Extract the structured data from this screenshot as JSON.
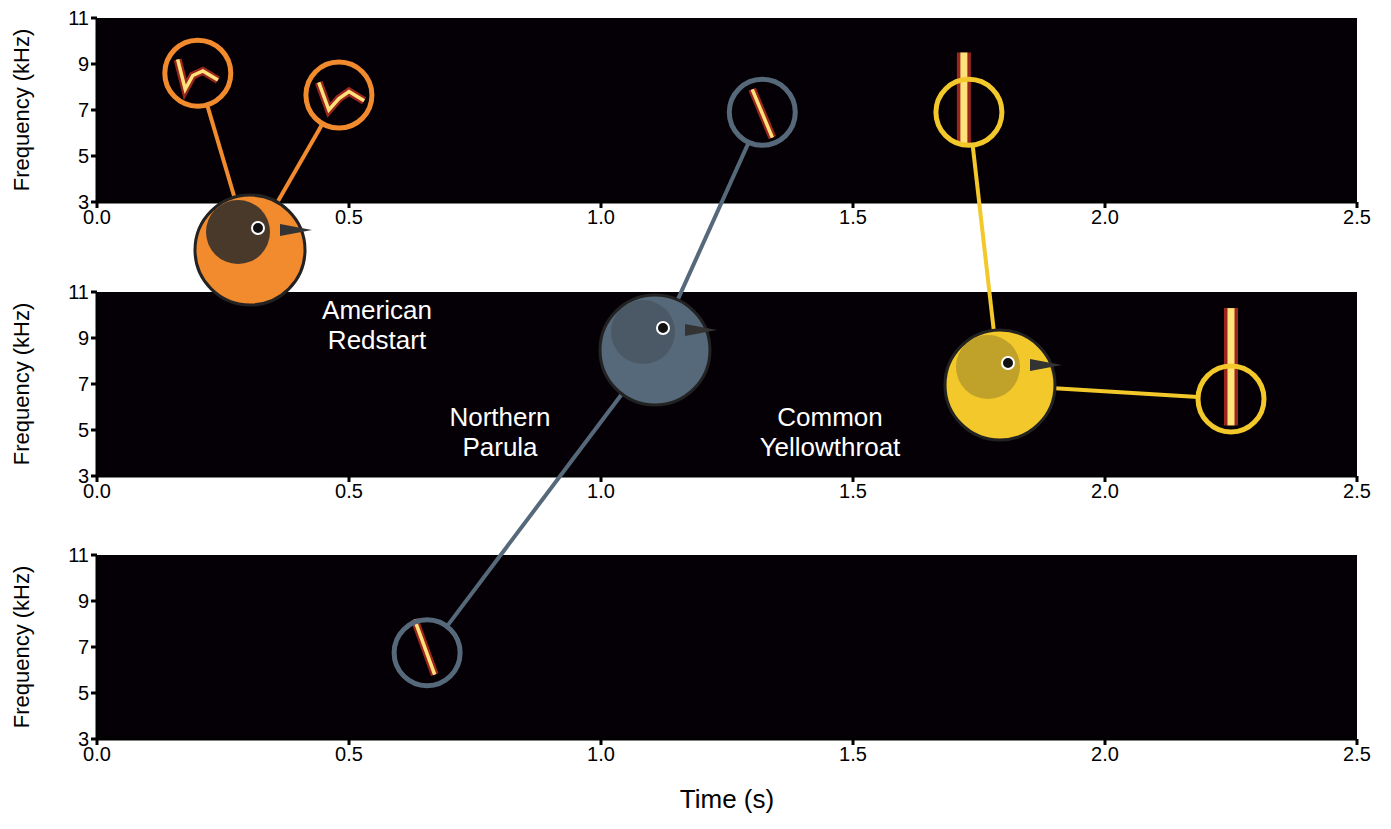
{
  "chart_data": [
    {
      "type": "spectrogram",
      "y_label": "Frequency (kHz)",
      "xlim": [
        0,
        2.5
      ],
      "xticks": [
        {
          "value": 0,
          "label": "0.0"
        },
        0.5,
        {
          "value": 1,
          "label": "1.0"
        },
        1.5,
        {
          "value": 2,
          "label": "2.0"
        },
        2.5
      ],
      "ylim": [
        3,
        11
      ],
      "yticks": [
        3,
        5,
        7,
        9,
        11
      ],
      "annotations": [
        {
          "species": "American Redstart",
          "x": 0.2,
          "y": 8.6,
          "trace": {
            "x": [
              0.16,
              0.175,
              0.19,
              0.21,
              0.24
            ],
            "y": [
              9.2,
              7.9,
              8.5,
              8.7,
              8.3
            ]
          }
        },
        {
          "species": "American Redstart",
          "x": 0.48,
          "y": 7.65,
          "trace": {
            "x": [
              0.44,
              0.46,
              0.48,
              0.5,
              0.53
            ],
            "y": [
              8.2,
              7.0,
              7.5,
              7.8,
              7.4
            ]
          }
        },
        {
          "species": "Northern Parula",
          "x": 1.32,
          "y": 6.9,
          "trace": {
            "x": [
              1.3,
              1.34
            ],
            "y": [
              7.9,
              5.8
            ]
          }
        },
        {
          "species": "Common Yellowthroat",
          "x": 1.73,
          "y": 6.9,
          "trace": {
            "x": [
              1.72,
              1.72
            ],
            "y": [
              5.5,
              9.5
            ]
          }
        }
      ]
    },
    {
      "type": "spectrogram",
      "y_label": "Frequency (kHz)",
      "xlim": [
        0,
        2.5
      ],
      "xticks": [
        {
          "value": 0,
          "label": "0.0"
        },
        0.5,
        {
          "value": 1,
          "label": "1.0"
        },
        1.5,
        {
          "value": 2,
          "label": "2.0"
        },
        2.5
      ],
      "ylim": [
        3,
        11
      ],
      "yticks": [
        3,
        5,
        7,
        9,
        11
      ],
      "annotations": [
        {
          "species": "Common Yellowthroat",
          "x": 2.25,
          "y": 6.35,
          "trace": {
            "x": [
              2.25,
              2.25
            ],
            "y": [
              5.2,
              10.3
            ]
          }
        }
      ]
    },
    {
      "type": "spectrogram",
      "y_label": "Frequency (kHz)",
      "x_label": "Time (s)",
      "xlim": [
        0,
        2.5
      ],
      "xticks": [
        {
          "value": 0,
          "label": "0.0"
        },
        0.5,
        {
          "value": 1,
          "label": "1.0"
        },
        1.5,
        {
          "value": 2,
          "label": "2.0"
        },
        2.5
      ],
      "ylim": [
        3,
        11
      ],
      "yticks": [
        3,
        5,
        7,
        9,
        11
      ],
      "annotations": [
        {
          "species": "Northern Parula",
          "x": 0.655,
          "y": 6.75,
          "trace": {
            "x": [
              0.63,
              0.67
            ],
            "y": [
              8.2,
              5.8
            ]
          }
        }
      ]
    }
  ],
  "species": [
    {
      "name": "American Redstart",
      "color": "#f28a2e"
    },
    {
      "name": "Northern Parula",
      "color": "#56697a"
    },
    {
      "name": "Common Yellowthroat",
      "color": "#f2c82a"
    }
  ]
}
